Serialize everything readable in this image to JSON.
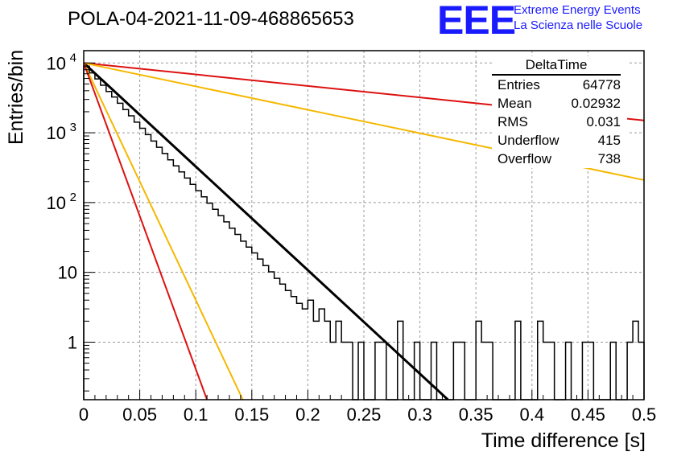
{
  "title": "POLA-04-2021-11-09-468865653",
  "logo": {
    "mark": "EEE",
    "line1": "Extreme Energy Events",
    "line2": "La Scienza nelle Scuole",
    "color": "#1a1aff"
  },
  "stats_box": {
    "title": "DeltaTime",
    "rows": [
      {
        "label": "Entries",
        "value": "64778"
      },
      {
        "label": "Mean",
        "value": "0.02932"
      },
      {
        "label": "RMS",
        "value": "0.031"
      },
      {
        "label": "Underflow",
        "value": "415"
      },
      {
        "label": "Overflow",
        "value": "738"
      }
    ]
  },
  "chart_data": {
    "type": "line",
    "title": "POLA-04-2021-11-09-468865653",
    "xlabel": "Time difference [s]",
    "ylabel": "Entries/bin",
    "xlim": [
      0,
      0.5
    ],
    "ylim": [
      0.15,
      15000
    ],
    "y_log_scale": true,
    "grid": true,
    "x_ticks": [
      "0",
      "0.05",
      "0.1",
      "0.15",
      "0.2",
      "0.25",
      "0.3",
      "0.35",
      "0.4",
      "0.45",
      "0.5"
    ],
    "y_ticks": [
      {
        "value": 1,
        "label": "1"
      },
      {
        "value": 10,
        "label": "10"
      },
      {
        "value": 100,
        "label": "10",
        "exp": "2"
      },
      {
        "value": 1000,
        "label": "10",
        "exp": "3"
      },
      {
        "value": 10000,
        "label": "10",
        "exp": "4"
      }
    ],
    "histogram": {
      "bin_width": 0.005,
      "color": "#000000",
      "values": [
        9000,
        7200,
        5900,
        4800,
        3900,
        3250,
        2650,
        2150,
        1750,
        1420,
        1160,
        940,
        760,
        620,
        505,
        410,
        335,
        275,
        225,
        182,
        148,
        121,
        98,
        80,
        65,
        53,
        43,
        35,
        28,
        23,
        19,
        15.5,
        12.5,
        10.2,
        8.2,
        6.8,
        5.5,
        4.5,
        3.6,
        3.0,
        4,
        2,
        3,
        2,
        1,
        2,
        1,
        1,
        0,
        1,
        0,
        0,
        1,
        1,
        0,
        0,
        2,
        0,
        0,
        1,
        0,
        0,
        1,
        0,
        0,
        0,
        1,
        1,
        0,
        0,
        2,
        1,
        1,
        0,
        0,
        0,
        0,
        2,
        0,
        0,
        0,
        2,
        1,
        1,
        0,
        0,
        1,
        0,
        0,
        1,
        1,
        0,
        0,
        0,
        1,
        0,
        0,
        1,
        2,
        1
      ]
    },
    "series": [
      {
        "color": "#000000",
        "width": 3,
        "points": [
          [
            0,
            10000
          ],
          [
            0.325,
            0.15
          ]
        ]
      },
      {
        "color": "#dd1111",
        "width": 2,
        "points": [
          [
            0,
            10000
          ],
          [
            0.5,
            1500
          ]
        ]
      },
      {
        "color": "#f5b800",
        "width": 2,
        "points": [
          [
            0,
            10000
          ],
          [
            0.5,
            210
          ]
        ]
      },
      {
        "color": "#f5b800",
        "width": 2,
        "points": [
          [
            0,
            10000
          ],
          [
            0.142,
            0.15
          ]
        ]
      },
      {
        "color": "#dd1111",
        "width": 2,
        "points": [
          [
            0,
            10000
          ],
          [
            0.11,
            0.15
          ]
        ]
      }
    ]
  }
}
